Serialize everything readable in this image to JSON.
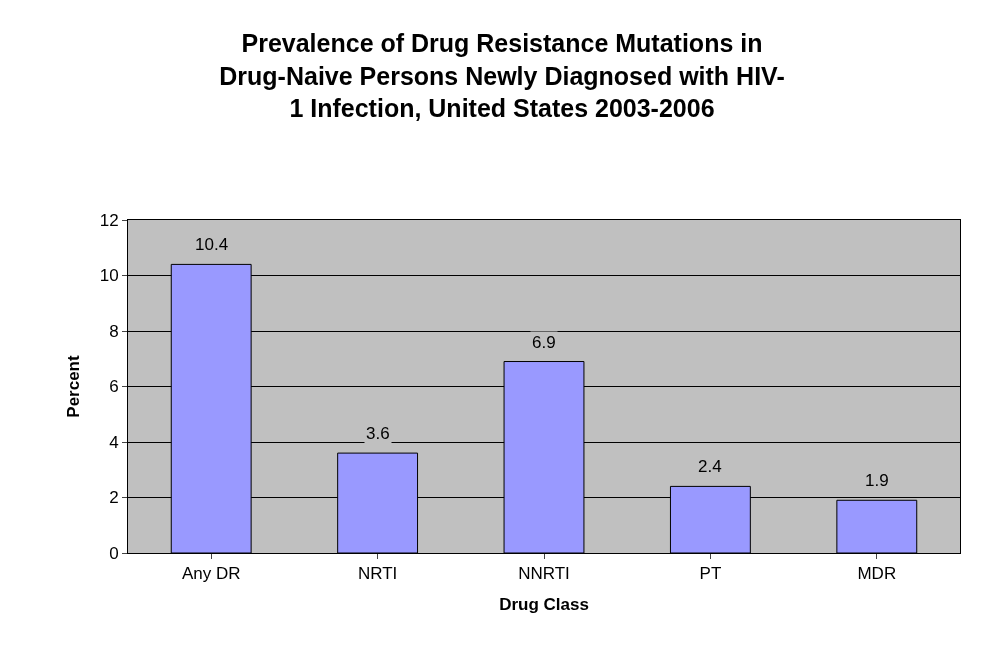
{
  "chart_data": {
    "type": "bar",
    "title": "Prevalence of Drug Resistance Mutations in\nDrug-Naive Persons Newly Diagnosed with HIV-\n1 Infection, United States 2003-2006",
    "xlabel": "Drug Class",
    "ylabel": "Percent",
    "categories": [
      "Any DR",
      "NRTI",
      "NNRTI",
      "PT",
      "MDR"
    ],
    "values": [
      10.4,
      3.6,
      6.9,
      2.4,
      1.9
    ],
    "color": "#9999ff",
    "ylim": [
      0,
      12
    ],
    "yticks": [
      0,
      2,
      4,
      6,
      8,
      10,
      12
    ],
    "grid": "y",
    "data_labels": true
  }
}
